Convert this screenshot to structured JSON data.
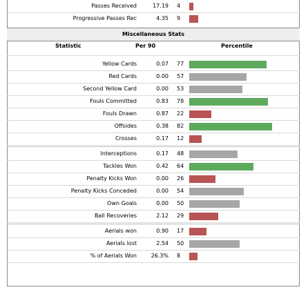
{
  "colors": {
    "high": "#5daa5d",
    "mid": "#a6a6a6",
    "low": "#b85454",
    "panel": "#eeeeee"
  },
  "top_rows": [
    {
      "label": "Passes Received",
      "value": "17.19",
      "percentile": 4
    },
    {
      "label": "Progressive Passes Rec",
      "value": "4.35",
      "percentile": 9
    }
  ],
  "section_title": "Miscellaneous Stats",
  "columns": {
    "statistic": "Statistic",
    "per90": "Per 90",
    "percentile": "Percentile"
  },
  "groups": [
    [
      {
        "label": "Yellow Cards",
        "value": "0.07",
        "percentile": 77
      },
      {
        "label": "Red Cards",
        "value": "0.00",
        "percentile": 57
      },
      {
        "label": "Second Yellow Card",
        "value": "0.00",
        "percentile": 53
      },
      {
        "label": "Fouls Committed",
        "value": "0.83",
        "percentile": 78
      },
      {
        "label": "Fouls Drawn",
        "value": "0.87",
        "percentile": 22
      },
      {
        "label": "Offsides",
        "value": "0.38",
        "percentile": 82
      },
      {
        "label": "Crosses",
        "value": "0.17",
        "percentile": 12
      }
    ],
    [
      {
        "label": "Interceptions",
        "value": "0.17",
        "percentile": 48
      },
      {
        "label": "Tackles Won",
        "value": "0.42",
        "percentile": 64
      },
      {
        "label": "Penalty Kicks Won",
        "value": "0.00",
        "percentile": 26
      },
      {
        "label": "Penalty Kicks Conceded",
        "value": "0.00",
        "percentile": 54
      },
      {
        "label": "Own Goals",
        "value": "0.00",
        "percentile": 50
      },
      {
        "label": "Ball Recoveries",
        "value": "2.12",
        "percentile": 29
      }
    ],
    [
      {
        "label": "Aerials won",
        "value": "0.90",
        "percentile": 17
      },
      {
        "label": "Aerials lost",
        "value": "2.54",
        "percentile": 50
      },
      {
        "label": "% of Aerials Won",
        "value": "26.3%",
        "percentile": 8
      }
    ]
  ]
}
